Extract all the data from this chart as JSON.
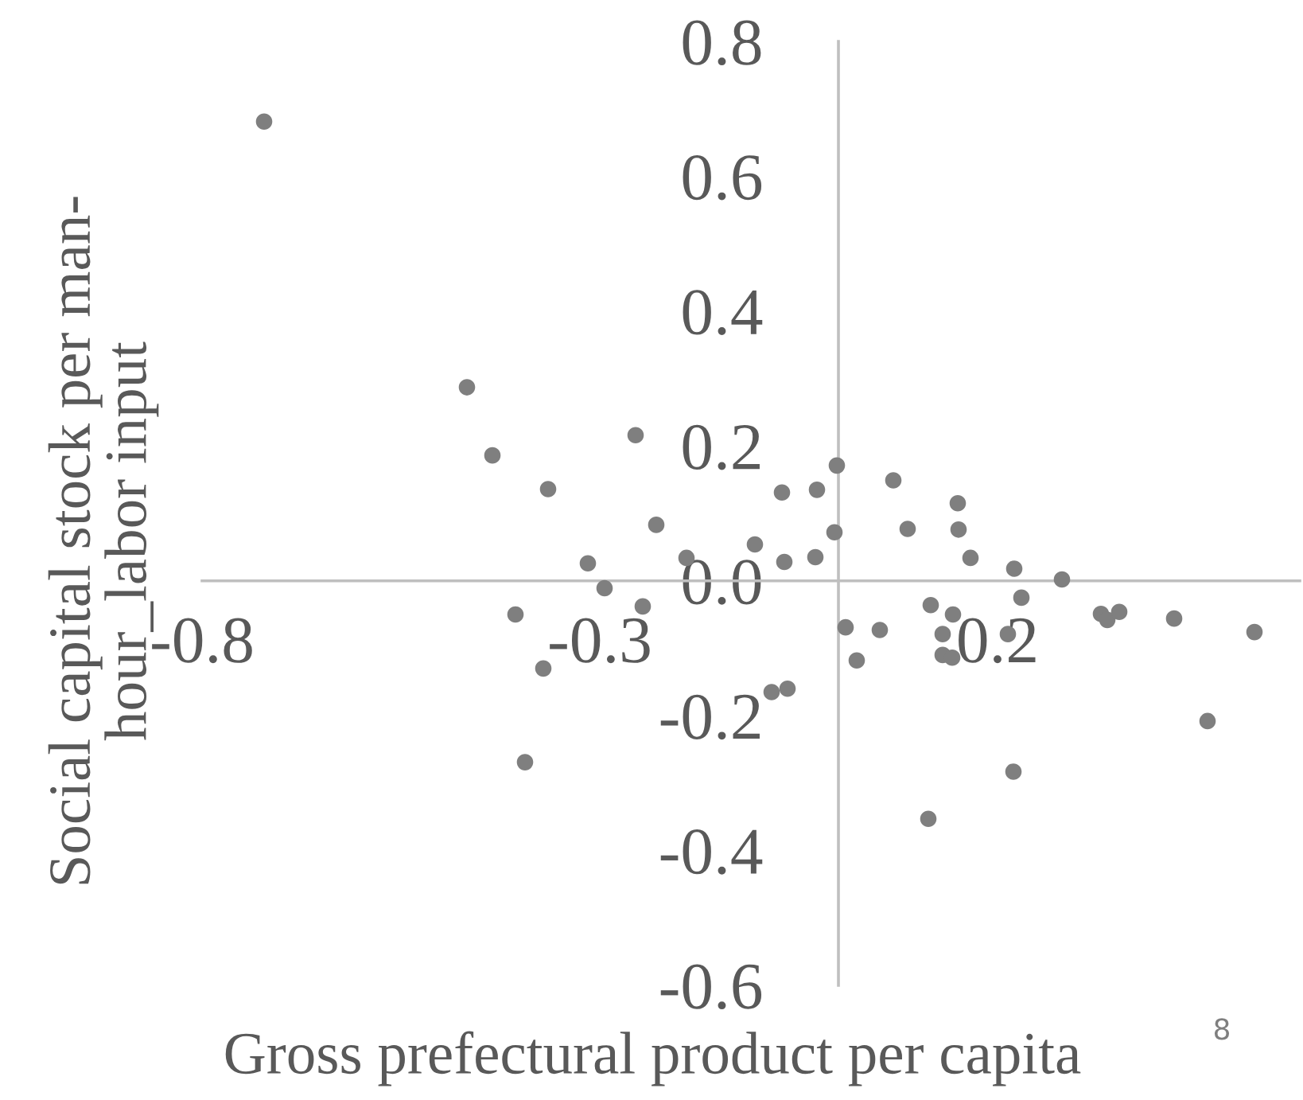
{
  "chart_data": {
    "type": "scatter",
    "xlabel": "Gross prefectural product per capita",
    "ylabel": "Social capital stock per man-\nhour_labor input",
    "annotations": [
      "8"
    ],
    "xlim": [
      -0.8,
      0.58
    ],
    "ylim": [
      -0.6,
      0.8
    ],
    "xticks": [
      -0.8,
      -0.3,
      0.2
    ],
    "yticks": [
      {
        "value": -0.6,
        "label": "-0.6"
      },
      {
        "value": -0.4,
        "label": "-0.4"
      },
      {
        "value": -0.2,
        "label": "-0.2"
      },
      {
        "value": 0,
        "label": "0.0"
      },
      {
        "value": 0.2,
        "label": "0.2"
      },
      {
        "value": 0.4,
        "label": "0.4"
      },
      {
        "value": 0.6,
        "label": "0.6"
      },
      {
        "value": 0.8,
        "label": "0.8"
      }
    ],
    "grid": false,
    "marker": "circle",
    "series": [
      {
        "color": "#7f7f7f",
        "x": [
          -0.722,
          -0.467,
          -0.435,
          -0.365,
          -0.255,
          -0.229,
          -0.315,
          -0.294,
          -0.246,
          -0.406,
          -0.371,
          -0.191,
          -0.105,
          -0.071,
          -0.027,
          -0.002,
          -0.005,
          -0.068,
          -0.029,
          -0.084,
          -0.064,
          -0.394,
          0.009,
          0.023,
          0.052,
          0.069,
          0.087,
          0.116,
          0.131,
          0.131,
          0.143,
          0.144,
          0.15,
          0.151,
          0.166,
          0.113,
          0.213,
          0.22,
          0.221,
          0.23,
          0.281,
          0.33,
          0.338,
          0.353,
          0.422,
          0.464,
          0.523
        ],
        "values": [
          0.681,
          0.287,
          0.186,
          0.136,
          0.216,
          0.083,
          0.026,
          -0.011,
          -0.038,
          -0.05,
          -0.13,
          0.034,
          0.054,
          0.131,
          0.135,
          0.171,
          0.072,
          0.028,
          0.035,
          -0.165,
          -0.16,
          -0.269,
          -0.069,
          -0.118,
          -0.073,
          0.149,
          0.077,
          -0.036,
          -0.079,
          -0.11,
          -0.114,
          -0.05,
          0.115,
          0.076,
          0.034,
          -0.353,
          -0.079,
          -0.283,
          0.018,
          -0.025,
          0.002,
          -0.049,
          -0.058,
          -0.046,
          -0.056,
          -0.208,
          -0.076
        ]
      }
    ]
  }
}
